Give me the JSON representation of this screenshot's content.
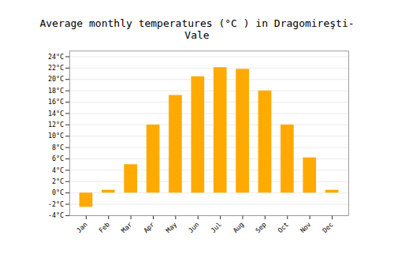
{
  "chart_data": {
    "type": "bar",
    "title": "Average monthly temperatures (°C ) in Dragomireşti-Vale",
    "categories": [
      "Jan",
      "Feb",
      "Mar",
      "Apr",
      "May",
      "Jun",
      "Jul",
      "Aug",
      "Sep",
      "Oct",
      "Nov",
      "Dec"
    ],
    "values": [
      -2.5,
      0.5,
      5.0,
      12.0,
      17.2,
      20.5,
      22.1,
      21.8,
      18.0,
      12.0,
      6.2,
      0.5
    ],
    "color": "#FFAA00",
    "ylim": [
      -4,
      25
    ],
    "yticks": [
      {
        "value": -4,
        "label": "-4°C"
      },
      {
        "value": -2,
        "label": "-2°C"
      },
      {
        "value": 0,
        "label": "0°C"
      },
      {
        "value": 2,
        "label": "2°C"
      },
      {
        "value": 4,
        "label": "4°C"
      },
      {
        "value": 6,
        "label": "6°C"
      },
      {
        "value": 8,
        "label": "8°C"
      },
      {
        "value": 10,
        "label": "10°C"
      },
      {
        "value": 12,
        "label": "12°C"
      },
      {
        "value": 14,
        "label": "14°C"
      },
      {
        "value": 16,
        "label": "16°C"
      },
      {
        "value": 18,
        "label": "18°C"
      },
      {
        "value": 20,
        "label": "20°C"
      },
      {
        "value": 22,
        "label": "22°C"
      },
      {
        "value": 24,
        "label": "24°C"
      }
    ],
    "grid": true
  }
}
